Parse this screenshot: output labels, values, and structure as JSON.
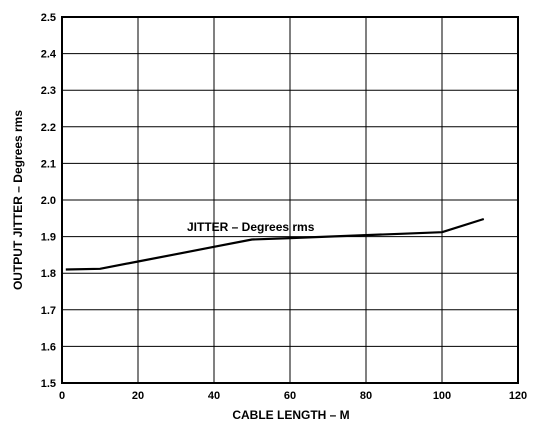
{
  "chart_data": {
    "type": "line",
    "xlabel": "CABLE LENGTH – M",
    "ylabel": "OUTPUT JITTER – Degrees rms",
    "xlim": [
      0,
      120
    ],
    "ylim": [
      1.5,
      2.5
    ],
    "x_ticks": [
      "0",
      "20",
      "40",
      "60",
      "80",
      "100",
      "120"
    ],
    "y_ticks": [
      "1.5",
      "1.6",
      "1.7",
      "1.8",
      "1.9",
      "2.0",
      "2.1",
      "2.2",
      "2.3",
      "2.4",
      "2.5"
    ],
    "grid": true,
    "annotation": "JITTER – Degrees rms",
    "series": [
      {
        "x": [
          1,
          10,
          20,
          30,
          40,
          50,
          60,
          70,
          80,
          90,
          100,
          111
        ],
        "y": [
          1.81,
          1.812,
          1.832,
          1.852,
          1.872,
          1.892,
          1.896,
          1.9,
          1.904,
          1.908,
          1.912,
          1.948
        ]
      }
    ]
  }
}
